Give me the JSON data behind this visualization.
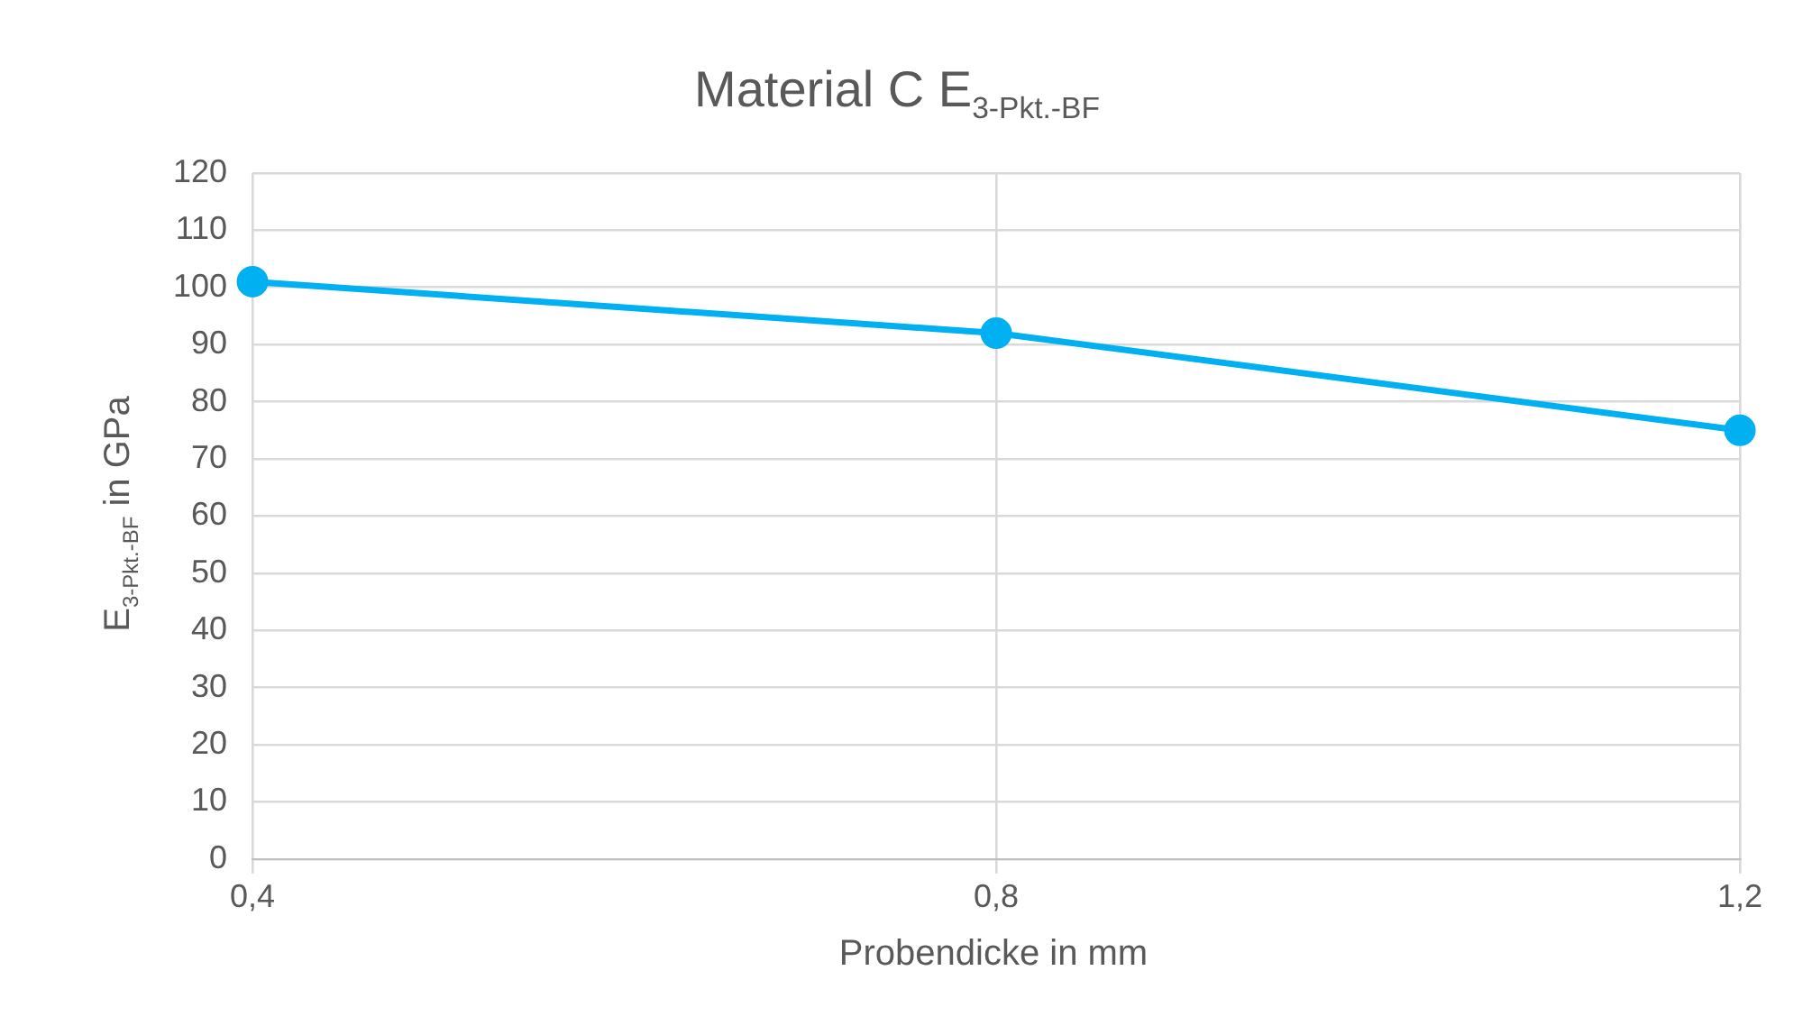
{
  "chart_data": {
    "type": "line",
    "title": "Material C E$_{3-Pkt.-BF}$",
    "xlabel": "Probendicke in mm",
    "ylabel": "E$_{3-Pkt.-BF}$ in GPa",
    "x": [
      0.4,
      0.8,
      1.2
    ],
    "series": [
      {
        "color": "#00b0f0",
        "values": [
          101,
          92,
          75
        ]
      }
    ],
    "xlim": [
      0.4,
      1.2
    ],
    "xticks": [
      {
        "value": 0.4,
        "label": "0,4"
      },
      {
        "value": 0.8,
        "label": "0,8"
      },
      {
        "value": 1.2,
        "label": "1,2"
      }
    ],
    "ylim": [
      0,
      120
    ],
    "yticks": [
      0,
      10,
      20,
      30,
      40,
      50,
      60,
      70,
      80,
      90,
      100,
      110,
      120
    ],
    "grid": true,
    "marker": "circle",
    "line_style": "solid",
    "legend": false
  }
}
